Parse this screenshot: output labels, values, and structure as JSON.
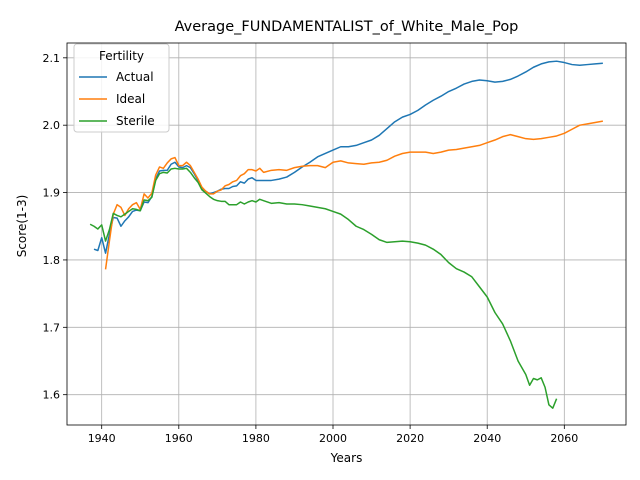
{
  "chart_data": {
    "type": "line",
    "title": "Average_FUNDAMENTALIST_of_White_Male_Pop",
    "xlabel": "Years",
    "ylabel": "Score(1-3)",
    "xlim": [
      1931,
      2076
    ],
    "ylim": [
      1.555,
      2.122
    ],
    "xticks": [
      1940,
      1960,
      1980,
      2000,
      2020,
      2040,
      2060
    ],
    "yticks": [
      1.6,
      1.7,
      1.8,
      1.9,
      2.0,
      2.1
    ],
    "grid": true,
    "legend": {
      "title": "Fertility",
      "placement": "top-left"
    },
    "series": [
      {
        "name": "Actual",
        "color": "#1f77b4",
        "points": [
          [
            1938,
            1.816
          ],
          [
            1939,
            1.814
          ],
          [
            1940,
            1.833
          ],
          [
            1941,
            1.81
          ],
          [
            1942,
            1.838
          ],
          [
            1943,
            1.863
          ],
          [
            1944,
            1.862
          ],
          [
            1945,
            1.85
          ],
          [
            1946,
            1.858
          ],
          [
            1947,
            1.864
          ],
          [
            1948,
            1.872
          ],
          [
            1949,
            1.874
          ],
          [
            1950,
            1.873
          ],
          [
            1951,
            1.886
          ],
          [
            1952,
            1.885
          ],
          [
            1953,
            1.894
          ],
          [
            1954,
            1.92
          ],
          [
            1955,
            1.932
          ],
          [
            1956,
            1.933
          ],
          [
            1957,
            1.933
          ],
          [
            1958,
            1.942
          ],
          [
            1959,
            1.945
          ],
          [
            1960,
            1.938
          ],
          [
            1961,
            1.937
          ],
          [
            1962,
            1.94
          ],
          [
            1963,
            1.937
          ],
          [
            1964,
            1.928
          ],
          [
            1965,
            1.918
          ],
          [
            1966,
            1.905
          ],
          [
            1967,
            1.902
          ],
          [
            1968,
            1.898
          ],
          [
            1969,
            1.9
          ],
          [
            1970,
            1.902
          ],
          [
            1971,
            1.905
          ],
          [
            1972,
            1.906
          ],
          [
            1973,
            1.906
          ],
          [
            1974,
            1.909
          ],
          [
            1975,
            1.91
          ],
          [
            1976,
            1.916
          ],
          [
            1977,
            1.914
          ],
          [
            1978,
            1.92
          ],
          [
            1979,
            1.922
          ],
          [
            1980,
            1.918
          ],
          [
            1982,
            1.918
          ],
          [
            1984,
            1.918
          ],
          [
            1986,
            1.92
          ],
          [
            1988,
            1.923
          ],
          [
            1990,
            1.93
          ],
          [
            1992,
            1.938
          ],
          [
            1994,
            1.945
          ],
          [
            1996,
            1.953
          ],
          [
            1998,
            1.958
          ],
          [
            2000,
            1.963
          ],
          [
            2002,
            1.968
          ],
          [
            2004,
            1.968
          ],
          [
            2006,
            1.97
          ],
          [
            2008,
            1.974
          ],
          [
            2010,
            1.978
          ],
          [
            2012,
            1.985
          ],
          [
            2014,
            1.995
          ],
          [
            2016,
            2.005
          ],
          [
            2018,
            2.012
          ],
          [
            2020,
            2.016
          ],
          [
            2022,
            2.022
          ],
          [
            2024,
            2.03
          ],
          [
            2026,
            2.037
          ],
          [
            2028,
            2.043
          ],
          [
            2030,
            2.05
          ],
          [
            2032,
            2.055
          ],
          [
            2034,
            2.061
          ],
          [
            2036,
            2.065
          ],
          [
            2038,
            2.067
          ],
          [
            2040,
            2.066
          ],
          [
            2042,
            2.064
          ],
          [
            2044,
            2.065
          ],
          [
            2046,
            2.068
          ],
          [
            2048,
            2.073
          ],
          [
            2050,
            2.079
          ],
          [
            2052,
            2.086
          ],
          [
            2054,
            2.091
          ],
          [
            2056,
            2.094
          ],
          [
            2058,
            2.095
          ],
          [
            2060,
            2.093
          ],
          [
            2062,
            2.09
          ],
          [
            2064,
            2.089
          ],
          [
            2066,
            2.09
          ],
          [
            2068,
            2.091
          ],
          [
            2070,
            2.092
          ]
        ]
      },
      {
        "name": "Ideal",
        "color": "#ff7f0e",
        "points": [
          [
            1941,
            1.786
          ],
          [
            1942,
            1.828
          ],
          [
            1943,
            1.868
          ],
          [
            1944,
            1.882
          ],
          [
            1945,
            1.878
          ],
          [
            1946,
            1.866
          ],
          [
            1947,
            1.876
          ],
          [
            1948,
            1.882
          ],
          [
            1949,
            1.885
          ],
          [
            1950,
            1.875
          ],
          [
            1951,
            1.898
          ],
          [
            1952,
            1.892
          ],
          [
            1953,
            1.899
          ],
          [
            1954,
            1.926
          ],
          [
            1955,
            1.938
          ],
          [
            1956,
            1.936
          ],
          [
            1957,
            1.944
          ],
          [
            1958,
            1.95
          ],
          [
            1959,
            1.952
          ],
          [
            1960,
            1.94
          ],
          [
            1961,
            1.94
          ],
          [
            1962,
            1.945
          ],
          [
            1963,
            1.94
          ],
          [
            1964,
            1.93
          ],
          [
            1965,
            1.92
          ],
          [
            1966,
            1.908
          ],
          [
            1967,
            1.902
          ],
          [
            1968,
            1.898
          ],
          [
            1969,
            1.898
          ],
          [
            1970,
            1.902
          ],
          [
            1971,
            1.904
          ],
          [
            1972,
            1.91
          ],
          [
            1973,
            1.912
          ],
          [
            1974,
            1.916
          ],
          [
            1975,
            1.918
          ],
          [
            1976,
            1.925
          ],
          [
            1977,
            1.928
          ],
          [
            1978,
            1.934
          ],
          [
            1979,
            1.934
          ],
          [
            1980,
            1.932
          ],
          [
            1981,
            1.936
          ],
          [
            1982,
            1.93
          ],
          [
            1984,
            1.933
          ],
          [
            1986,
            1.934
          ],
          [
            1988,
            1.933
          ],
          [
            1990,
            1.937
          ],
          [
            1992,
            1.939
          ],
          [
            1994,
            1.94
          ],
          [
            1996,
            1.94
          ],
          [
            1998,
            1.937
          ],
          [
            2000,
            1.945
          ],
          [
            2002,
            1.947
          ],
          [
            2004,
            1.944
          ],
          [
            2006,
            1.943
          ],
          [
            2008,
            1.942
          ],
          [
            2010,
            1.944
          ],
          [
            2012,
            1.945
          ],
          [
            2014,
            1.948
          ],
          [
            2016,
            1.954
          ],
          [
            2018,
            1.958
          ],
          [
            2020,
            1.96
          ],
          [
            2022,
            1.96
          ],
          [
            2024,
            1.96
          ],
          [
            2026,
            1.958
          ],
          [
            2028,
            1.96
          ],
          [
            2030,
            1.963
          ],
          [
            2032,
            1.964
          ],
          [
            2034,
            1.966
          ],
          [
            2036,
            1.968
          ],
          [
            2038,
            1.97
          ],
          [
            2040,
            1.974
          ],
          [
            2042,
            1.978
          ],
          [
            2044,
            1.983
          ],
          [
            2046,
            1.986
          ],
          [
            2048,
            1.983
          ],
          [
            2050,
            1.98
          ],
          [
            2052,
            1.979
          ],
          [
            2054,
            1.98
          ],
          [
            2056,
            1.982
          ],
          [
            2058,
            1.984
          ],
          [
            2060,
            1.988
          ],
          [
            2062,
            1.994
          ],
          [
            2064,
            2.0
          ],
          [
            2066,
            2.002
          ],
          [
            2068,
            2.004
          ],
          [
            2070,
            2.006
          ]
        ]
      },
      {
        "name": "Sterile",
        "color": "#2ca02c",
        "points": [
          [
            1937,
            1.853
          ],
          [
            1938,
            1.85
          ],
          [
            1939,
            1.846
          ],
          [
            1940,
            1.852
          ],
          [
            1941,
            1.828
          ],
          [
            1942,
            1.845
          ],
          [
            1943,
            1.869
          ],
          [
            1944,
            1.866
          ],
          [
            1945,
            1.864
          ],
          [
            1946,
            1.868
          ],
          [
            1947,
            1.872
          ],
          [
            1948,
            1.876
          ],
          [
            1949,
            1.875
          ],
          [
            1950,
            1.873
          ],
          [
            1951,
            1.889
          ],
          [
            1952,
            1.888
          ],
          [
            1953,
            1.893
          ],
          [
            1954,
            1.918
          ],
          [
            1955,
            1.928
          ],
          [
            1956,
            1.93
          ],
          [
            1957,
            1.929
          ],
          [
            1958,
            1.935
          ],
          [
            1959,
            1.936
          ],
          [
            1960,
            1.935
          ],
          [
            1961,
            1.935
          ],
          [
            1962,
            1.936
          ],
          [
            1963,
            1.93
          ],
          [
            1964,
            1.922
          ],
          [
            1965,
            1.915
          ],
          [
            1966,
            1.904
          ],
          [
            1967,
            1.899
          ],
          [
            1968,
            1.894
          ],
          [
            1969,
            1.89
          ],
          [
            1970,
            1.888
          ],
          [
            1971,
            1.887
          ],
          [
            1972,
            1.887
          ],
          [
            1973,
            1.882
          ],
          [
            1974,
            1.882
          ],
          [
            1975,
            1.882
          ],
          [
            1976,
            1.886
          ],
          [
            1977,
            1.883
          ],
          [
            1978,
            1.886
          ],
          [
            1979,
            1.888
          ],
          [
            1980,
            1.886
          ],
          [
            1981,
            1.89
          ],
          [
            1982,
            1.888
          ],
          [
            1984,
            1.884
          ],
          [
            1986,
            1.885
          ],
          [
            1988,
            1.883
          ],
          [
            1990,
            1.883
          ],
          [
            1992,
            1.882
          ],
          [
            1994,
            1.88
          ],
          [
            1996,
            1.878
          ],
          [
            1998,
            1.876
          ],
          [
            2000,
            1.872
          ],
          [
            2002,
            1.868
          ],
          [
            2004,
            1.86
          ],
          [
            2006,
            1.85
          ],
          [
            2008,
            1.845
          ],
          [
            2010,
            1.838
          ],
          [
            2012,
            1.83
          ],
          [
            2014,
            1.826
          ],
          [
            2016,
            1.827
          ],
          [
            2018,
            1.828
          ],
          [
            2020,
            1.827
          ],
          [
            2022,
            1.825
          ],
          [
            2024,
            1.822
          ],
          [
            2026,
            1.816
          ],
          [
            2028,
            1.808
          ],
          [
            2030,
            1.796
          ],
          [
            2032,
            1.787
          ],
          [
            2034,
            1.782
          ],
          [
            2036,
            1.775
          ],
          [
            2038,
            1.76
          ],
          [
            2040,
            1.745
          ],
          [
            2042,
            1.722
          ],
          [
            2044,
            1.705
          ],
          [
            2046,
            1.68
          ],
          [
            2048,
            1.65
          ],
          [
            2050,
            1.63
          ],
          [
            2051,
            1.614
          ],
          [
            2052,
            1.624
          ],
          [
            2053,
            1.622
          ],
          [
            2054,
            1.625
          ],
          [
            2055,
            1.611
          ],
          [
            2056,
            1.585
          ],
          [
            2057,
            1.58
          ],
          [
            2058,
            1.594
          ]
        ]
      }
    ]
  }
}
